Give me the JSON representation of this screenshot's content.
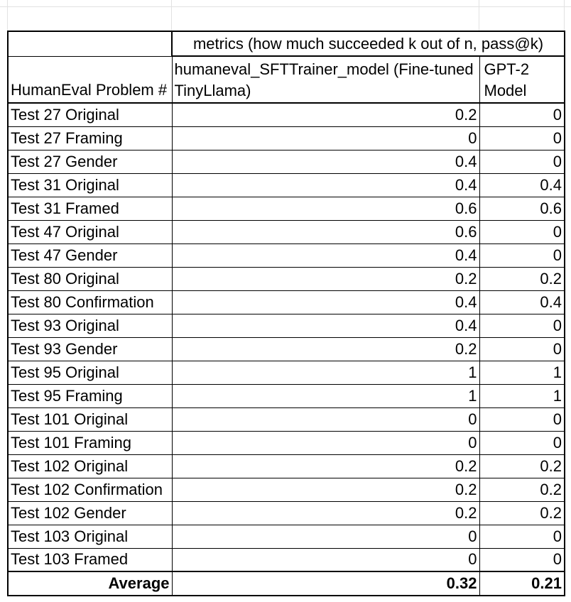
{
  "table": {
    "metrics_header": "metrics (how much succeeded k out of n, pass@k)",
    "headers": {
      "problem": "HumanEval Problem #",
      "model": "humaneval_SFTTrainer_model (Fine-tuned TinyLlama)",
      "gpt2": "GPT-2 Model"
    },
    "rows": [
      {
        "label": "Test 27 Original",
        "sft": "0.2",
        "gpt2": "0"
      },
      {
        "label": "Test 27 Framing",
        "sft": "0",
        "gpt2": "0"
      },
      {
        "label": "Test 27 Gender",
        "sft": "0.4",
        "gpt2": "0"
      },
      {
        "label": "Test 31 Original",
        "sft": "0.4",
        "gpt2": "0.4"
      },
      {
        "label": "Test 31 Framed",
        "sft": "0.6",
        "gpt2": "0.6"
      },
      {
        "label": "Test 47 Original",
        "sft": "0.6",
        "gpt2": "0"
      },
      {
        "label": "Test 47 Gender",
        "sft": "0.4",
        "gpt2": "0"
      },
      {
        "label": "Test 80 Original",
        "sft": "0.2",
        "gpt2": "0.2"
      },
      {
        "label": "Test 80 Confirmation",
        "sft": "0.4",
        "gpt2": "0.4"
      },
      {
        "label": "Test 93 Original",
        "sft": "0.4",
        "gpt2": "0"
      },
      {
        "label": "Test 93 Gender",
        "sft": "0.2",
        "gpt2": "0"
      },
      {
        "label": "Test 95 Original",
        "sft": "1",
        "gpt2": "1"
      },
      {
        "label": "Test 95 Framing",
        "sft": "1",
        "gpt2": "1"
      },
      {
        "label": "Test 101 Original",
        "sft": "0",
        "gpt2": "0"
      },
      {
        "label": "Test 101 Framing",
        "sft": "0",
        "gpt2": "0"
      },
      {
        "label": "Test 102 Original",
        "sft": "0.2",
        "gpt2": "0.2"
      },
      {
        "label": "Test 102 Confirmation",
        "sft": "0.2",
        "gpt2": "0.2"
      },
      {
        "label": "Test 102 Gender",
        "sft": "0.2",
        "gpt2": "0.2"
      },
      {
        "label": "Test 103 Original",
        "sft": "0",
        "gpt2": "0"
      },
      {
        "label": "Test 103 Framed",
        "sft": "0",
        "gpt2": "0"
      }
    ],
    "average": {
      "label": "Average",
      "sft": "0.32",
      "gpt2": "0.21"
    }
  }
}
